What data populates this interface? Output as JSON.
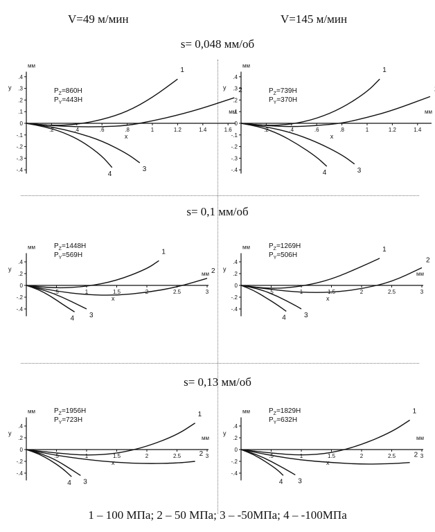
{
  "columns": [
    "V=49 м/мин",
    "V=145 м/мин"
  ],
  "rows": [
    "s= 0,048 мм/об",
    "s= 0,1 мм/об",
    "s= 0,13 мм/об"
  ],
  "footer": "1 – 100 МПа; 2 – 50 МПа; 3 – -50МПа; 4 – -100МПа",
  "chart_data": [
    {
      "type": "line",
      "row": 0,
      "col": 0,
      "xlabel": "x",
      "ylabel": "y",
      "x_unit": "мм",
      "y_unit": "мм",
      "force_z": "P_Z=860H",
      "force_y": "P_Y=443H",
      "xlim": [
        0,
        1.65
      ],
      "ylim": [
        -0.42,
        0.42
      ],
      "xticks": [
        0.2,
        0.4,
        0.6,
        0.8,
        1,
        1.2,
        1.4,
        1.6
      ],
      "yticks": [
        0.4,
        0.3,
        0.2,
        0.1,
        0,
        -0.1,
        -0.2,
        -0.3,
        -0.4
      ],
      "series": [
        {
          "name": "1",
          "x": [
            0,
            0.2,
            0.4,
            0.6,
            0.8,
            1.0,
            1.2
          ],
          "y": [
            0,
            -0.02,
            -0.01,
            0.03,
            0.1,
            0.22,
            0.38
          ]
        },
        {
          "name": "2",
          "x": [
            0,
            0.2,
            0.4,
            0.6,
            0.8,
            1.0,
            1.2,
            1.4,
            1.65
          ],
          "y": [
            0,
            -0.02,
            -0.03,
            -0.03,
            -0.02,
            0.02,
            0.07,
            0.13,
            0.22
          ]
        },
        {
          "name": "3",
          "x": [
            0,
            0.2,
            0.4,
            0.6,
            0.8,
            0.9
          ],
          "y": [
            0,
            -0.03,
            -0.08,
            -0.15,
            -0.26,
            -0.34
          ]
        },
        {
          "name": "4",
          "x": [
            0,
            0.15,
            0.3,
            0.45,
            0.6,
            0.68
          ],
          "y": [
            0,
            -0.03,
            -0.08,
            -0.16,
            -0.28,
            -0.38
          ]
        }
      ]
    },
    {
      "type": "line",
      "row": 0,
      "col": 1,
      "xlabel": "x",
      "ylabel": "y",
      "x_unit": "мм",
      "y_unit": "мм",
      "force_z": "P_Z=739H",
      "force_y": "P_Y=370H",
      "xlim": [
        0,
        1.5
      ],
      "ylim": [
        -0.42,
        0.42
      ],
      "xticks": [
        0.2,
        0.4,
        0.6,
        0.8,
        1,
        1.2,
        1.4
      ],
      "yticks": [
        0.4,
        0.3,
        0.2,
        0.1,
        0,
        -0.1,
        -0.2,
        -0.3,
        -0.4
      ],
      "series": [
        {
          "name": "1",
          "x": [
            0,
            0.2,
            0.4,
            0.6,
            0.8,
            1.0,
            1.1
          ],
          "y": [
            0,
            -0.02,
            -0.01,
            0.04,
            0.13,
            0.27,
            0.38
          ]
        },
        {
          "name": "2",
          "x": [
            0,
            0.2,
            0.4,
            0.6,
            0.8,
            1.0,
            1.2,
            1.5
          ],
          "y": [
            0,
            -0.02,
            -0.03,
            -0.02,
            0.0,
            0.05,
            0.11,
            0.23
          ]
        },
        {
          "name": "3",
          "x": [
            0,
            0.2,
            0.4,
            0.6,
            0.8,
            0.9
          ],
          "y": [
            0,
            -0.03,
            -0.08,
            -0.16,
            -0.27,
            -0.35
          ]
        },
        {
          "name": "4",
          "x": [
            0,
            0.15,
            0.3,
            0.45,
            0.6,
            0.68
          ],
          "y": [
            0,
            -0.03,
            -0.09,
            -0.18,
            -0.29,
            -0.37
          ]
        }
      ]
    },
    {
      "type": "line",
      "row": 1,
      "col": 0,
      "xlabel": "x",
      "ylabel": "y",
      "x_unit": "мм",
      "y_unit": "мм",
      "force_z": "P_Z=1448H",
      "force_y": "P_Y=569H",
      "xlim": [
        0,
        3
      ],
      "ylim": [
        -0.5,
        0.5
      ],
      "xticks": [
        0.5,
        1,
        1.5,
        2,
        2.5,
        3
      ],
      "yticks": [
        0.4,
        0.2,
        0,
        -0.2,
        -0.4
      ],
      "series": [
        {
          "name": "1",
          "x": [
            0,
            0.5,
            1.0,
            1.5,
            2.0,
            2.2
          ],
          "y": [
            0,
            -0.05,
            -0.02,
            0.08,
            0.28,
            0.42
          ]
        },
        {
          "name": "2",
          "x": [
            0,
            0.5,
            1.0,
            1.5,
            2.0,
            2.5,
            3.0
          ],
          "y": [
            0,
            -0.1,
            -0.16,
            -0.17,
            -0.12,
            -0.03,
            0.12
          ]
        },
        {
          "name": "3",
          "x": [
            0,
            0.3,
            0.6,
            0.9,
            1.0
          ],
          "y": [
            0,
            -0.08,
            -0.2,
            -0.35,
            -0.4
          ]
        },
        {
          "name": "4",
          "x": [
            0,
            0.2,
            0.4,
            0.6,
            0.8
          ],
          "y": [
            0,
            -0.07,
            -0.18,
            -0.32,
            -0.45
          ]
        }
      ]
    },
    {
      "type": "line",
      "row": 1,
      "col": 1,
      "xlabel": "x",
      "ylabel": "y",
      "x_unit": "мм",
      "y_unit": "мм",
      "force_z": "P_Z=1269H",
      "force_y": "P_Y=506H",
      "xlim": [
        0,
        3
      ],
      "ylim": [
        -0.5,
        0.5
      ],
      "xticks": [
        0.5,
        1,
        1.5,
        2,
        2.5,
        3
      ],
      "yticks": [
        0.4,
        0.2,
        0,
        -0.2,
        -0.4
      ],
      "series": [
        {
          "name": "1",
          "x": [
            0,
            0.5,
            1.0,
            1.5,
            2.0,
            2.3
          ],
          "y": [
            0,
            -0.06,
            -0.02,
            0.1,
            0.32,
            0.46
          ]
        },
        {
          "name": "2",
          "x": [
            0,
            0.5,
            1.0,
            1.5,
            2.0,
            2.5,
            3.0
          ],
          "y": [
            0,
            -0.07,
            -0.12,
            -0.12,
            -0.06,
            0.06,
            0.3
          ]
        },
        {
          "name": "3",
          "x": [
            0,
            0.3,
            0.6,
            0.9,
            1.0
          ],
          "y": [
            0,
            -0.06,
            -0.18,
            -0.34,
            -0.4
          ]
        },
        {
          "name": "4",
          "x": [
            0,
            0.2,
            0.4,
            0.6,
            0.75
          ],
          "y": [
            0,
            -0.08,
            -0.2,
            -0.33,
            -0.44
          ]
        }
      ]
    },
    {
      "type": "line",
      "row": 2,
      "col": 0,
      "xlabel": "x",
      "ylabel": "y",
      "x_unit": "мм",
      "y_unit": "мм",
      "force_z": "P_Z=1956H",
      "force_y": "P_Y=723H",
      "xlim": [
        0,
        3
      ],
      "ylim": [
        -0.5,
        0.5
      ],
      "xticks": [
        0.5,
        1,
        1.5,
        2,
        2.5,
        3
      ],
      "yticks": [
        0.4,
        0.2,
        0,
        -0.2,
        -0.4
      ],
      "series": [
        {
          "name": "1",
          "x": [
            0,
            0.5,
            1.0,
            1.5,
            2.0,
            2.5,
            2.8
          ],
          "y": [
            0,
            -0.06,
            -0.1,
            -0.07,
            0.05,
            0.25,
            0.45
          ]
        },
        {
          "name": "2",
          "x": [
            0,
            0.5,
            1.0,
            1.5,
            2.0,
            2.5,
            2.8
          ],
          "y": [
            0,
            -0.1,
            -0.17,
            -0.22,
            -0.24,
            -0.23,
            -0.2
          ]
        },
        {
          "name": "3",
          "x": [
            0,
            0.25,
            0.5,
            0.75,
            0.9
          ],
          "y": [
            0,
            -0.07,
            -0.18,
            -0.34,
            -0.44
          ]
        },
        {
          "name": "4",
          "x": [
            0,
            0.2,
            0.4,
            0.6,
            0.75
          ],
          "y": [
            0,
            -0.07,
            -0.18,
            -0.32,
            -0.46
          ]
        }
      ]
    },
    {
      "type": "line",
      "row": 2,
      "col": 1,
      "xlabel": "x",
      "ylabel": "y",
      "x_unit": "мм",
      "y_unit": "мм",
      "force_z": "P_Z=1829H",
      "force_y": "P_Y=632H",
      "xlim": [
        0,
        3
      ],
      "ylim": [
        -0.5,
        0.5
      ],
      "xticks": [
        0.5,
        1,
        1.5,
        2,
        2.5,
        3
      ],
      "yticks": [
        0.4,
        0.2,
        0,
        -0.2,
        -0.4
      ],
      "series": [
        {
          "name": "1",
          "x": [
            0,
            0.5,
            1.0,
            1.5,
            2.0,
            2.5,
            2.8
          ],
          "y": [
            0,
            -0.06,
            -0.1,
            -0.06,
            0.08,
            0.3,
            0.5
          ]
        },
        {
          "name": "2",
          "x": [
            0,
            0.5,
            1.0,
            1.5,
            2.0,
            2.5,
            2.8
          ],
          "y": [
            0,
            -0.1,
            -0.18,
            -0.22,
            -0.25,
            -0.24,
            -0.22
          ]
        },
        {
          "name": "3",
          "x": [
            0,
            0.25,
            0.5,
            0.75,
            0.9
          ],
          "y": [
            0,
            -0.08,
            -0.2,
            -0.34,
            -0.43
          ]
        },
        {
          "name": "4",
          "x": [
            0,
            0.2,
            0.4,
            0.6,
            0.7
          ],
          "y": [
            0,
            -0.08,
            -0.2,
            -0.34,
            -0.44
          ]
        }
      ]
    }
  ]
}
